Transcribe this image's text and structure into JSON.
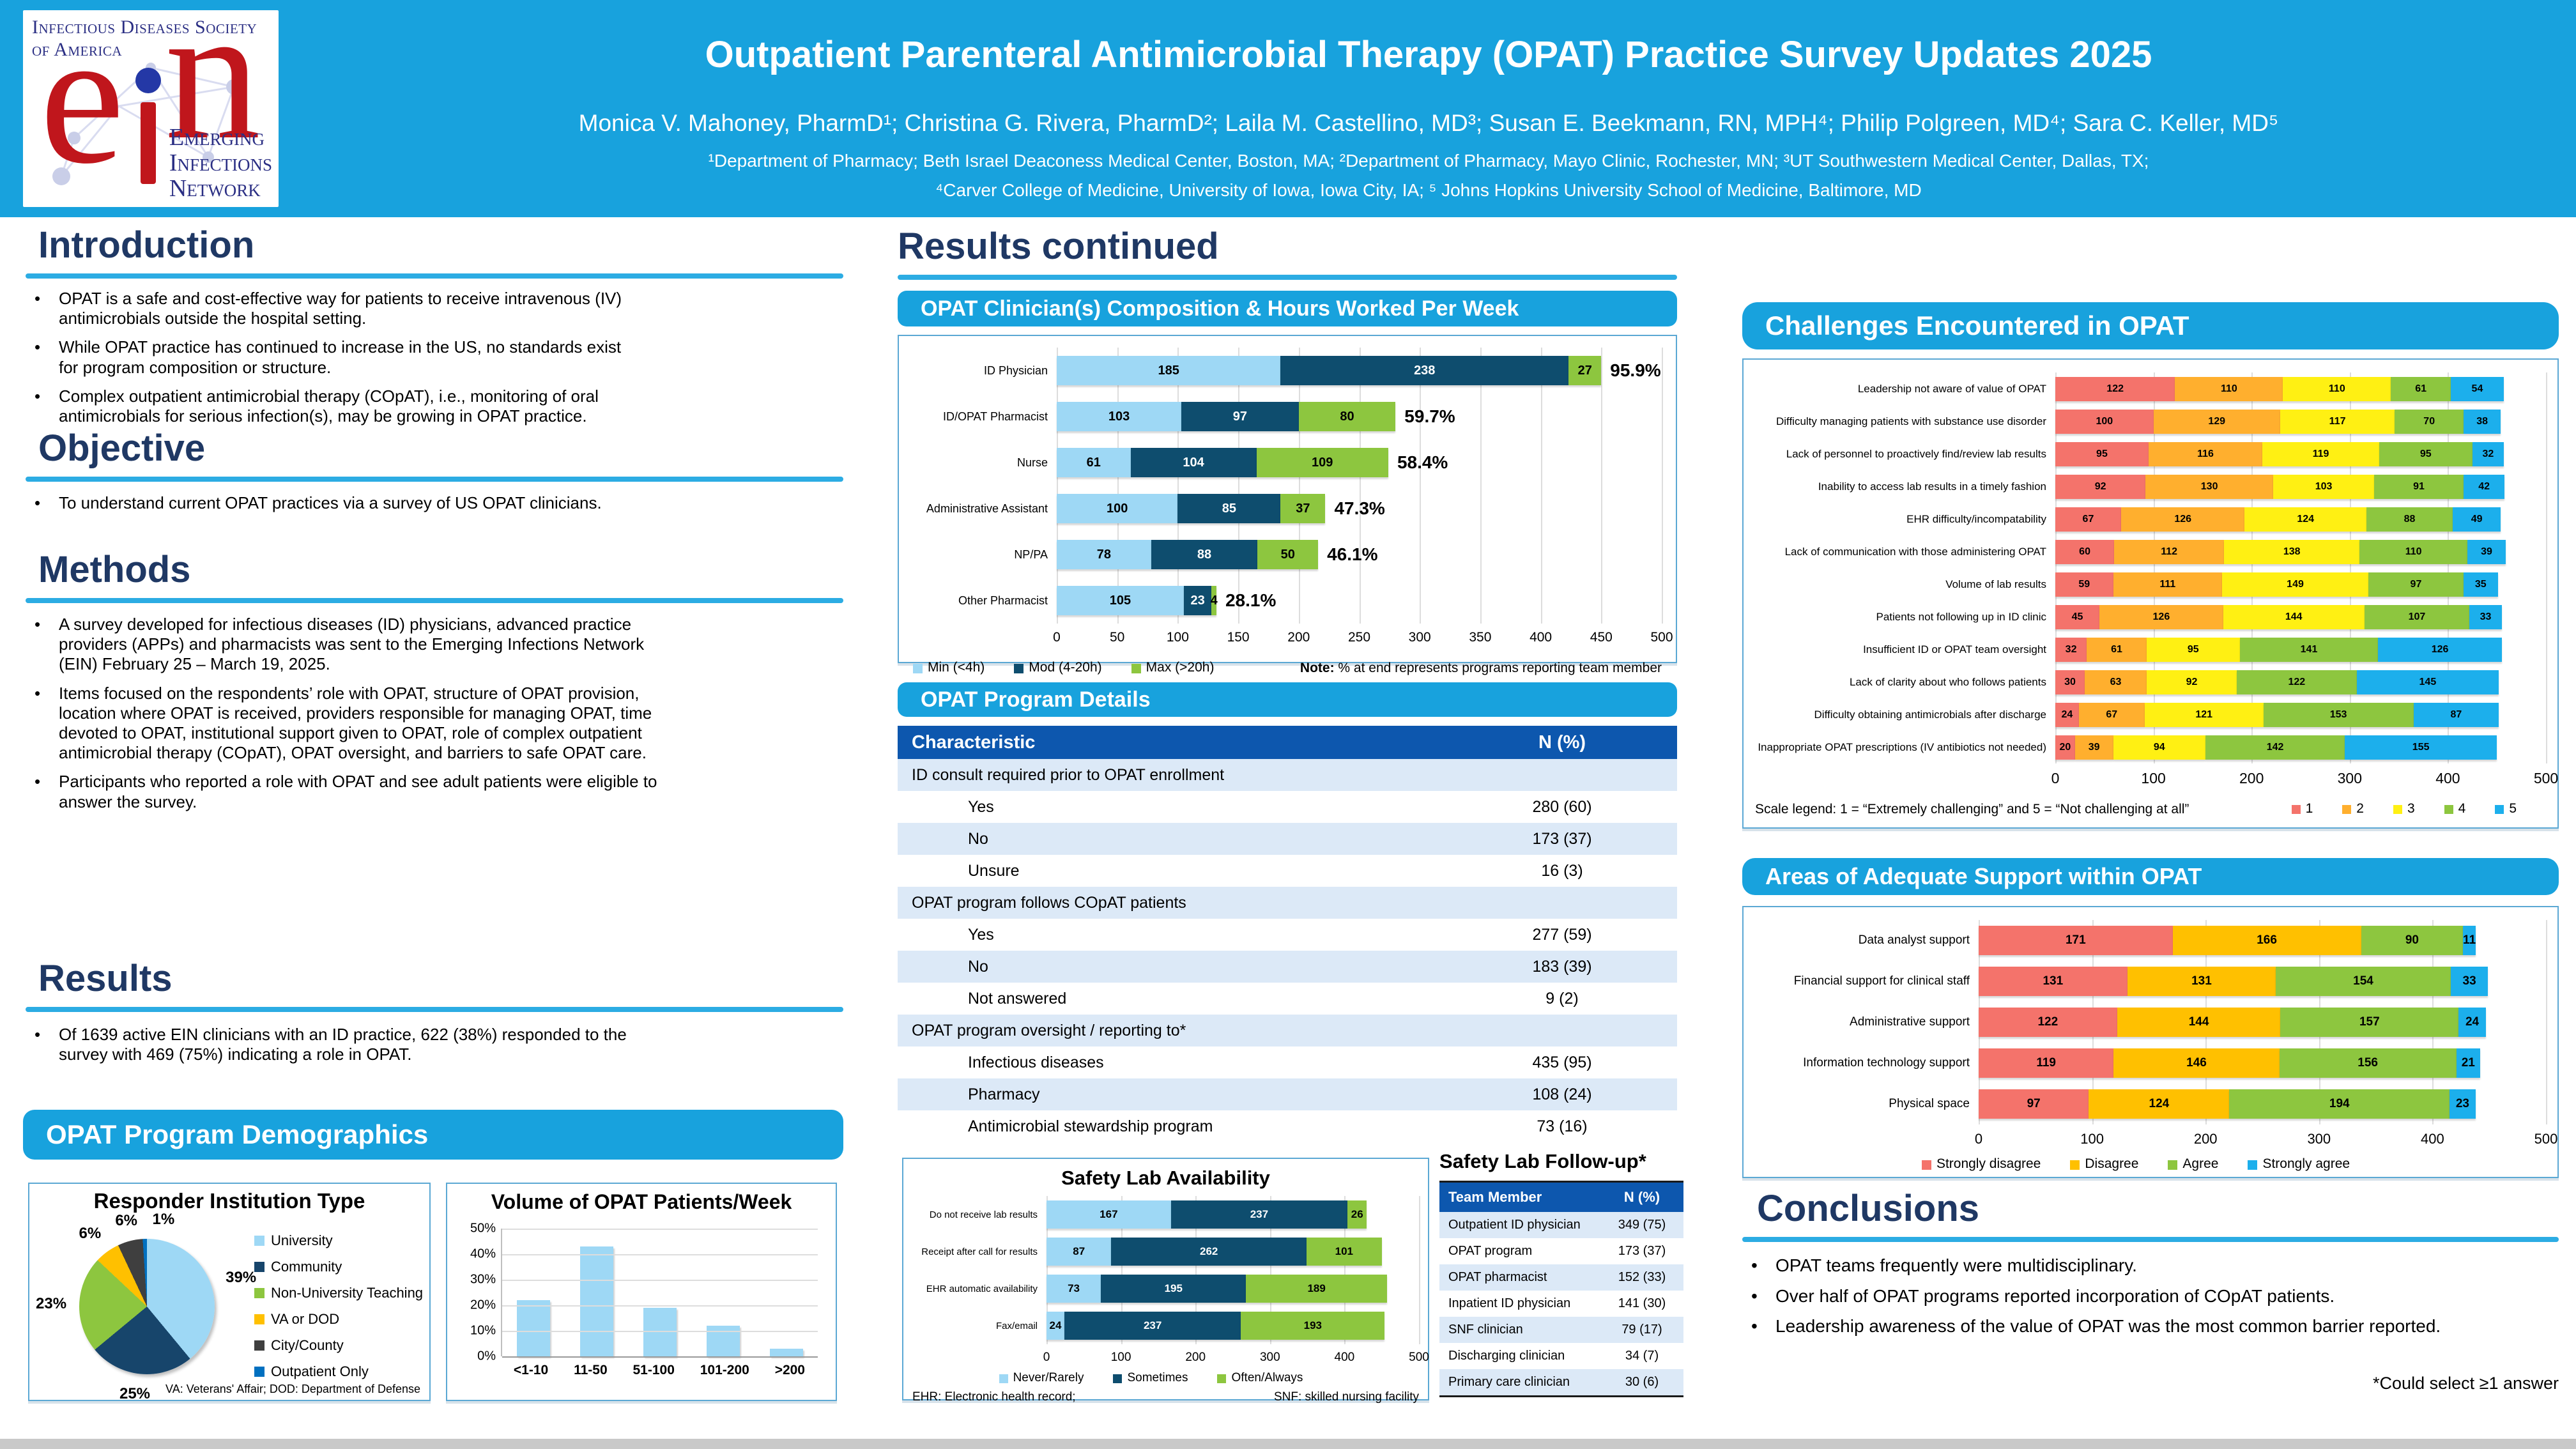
{
  "header": {
    "logo": {
      "society_line1": "Infectious Diseases Society",
      "society_line2": "of America",
      "acronym_e": "e",
      "acronym_n": "n",
      "network_line1": "Emerging",
      "network_line2": "Infections",
      "network_line3": "Network"
    },
    "title": "Outpatient Parenteral Antimicrobial Therapy (OPAT) Practice Survey Updates 2025",
    "authors": "Monica V. Mahoney, PharmD¹; Christina G. Rivera, PharmD²; Laila M. Castellino, MD³; Susan E. Beekmann, RN, MPH⁴; Philip Polgreen, MD⁴; Sara C. Keller, MD⁵",
    "affiliations_line1": "¹Department of Pharmacy; Beth Israel Deaconess Medical Center, Boston, MA; ²Department of Pharmacy, Mayo Clinic, Rochester, MN; ³UT Southwestern Medical Center, Dallas, TX;",
    "affiliations_line2": "⁴Carver College of Medicine, University of Iowa, Iowa City, IA; ⁵ Johns Hopkins University School of Medicine, Baltimore, MD"
  },
  "left": {
    "introduction": {
      "heading": "Introduction",
      "bullets": [
        "OPAT is a safe and cost-effective way for patients to receive intravenous (IV) antimicrobials outside the hospital setting.",
        "While OPAT practice has continued to increase in the US, no standards exist for program composition or structure.",
        "Complex outpatient antimicrobial therapy (COpAT), i.e., monitoring of oral antimicrobials for serious infection(s), may be growing in OPAT practice."
      ]
    },
    "objective": {
      "heading": "Objective",
      "bullets": [
        "To understand current OPAT practices via a survey of US OPAT clinicians."
      ]
    },
    "methods": {
      "heading": "Methods",
      "bullets": [
        "A survey developed for infectious diseases (ID) physicians, advanced practice providers (APPs) and pharmacists was sent to the Emerging Infections Network (EIN) February 25 – March 19, 2025.",
        "Items focused on the respondents’ role with OPAT, structure of OPAT provision, location where OPAT is received, providers responsible for managing OPAT, time devoted to OPAT, institutional support given to OPAT, role of complex outpatient antimicrobial therapy (COpAT), OPAT oversight, and barriers to safe OPAT care.",
        "Participants who reported a role with OPAT and see adult patients were eligible to answer the survey."
      ]
    },
    "results": {
      "heading": "Results",
      "bullets": [
        "Of 1639 active EIN clinicians with an ID practice, 622 (38%) responded to the survey with 469 (75%) indicating a role in OPAT."
      ]
    },
    "demographics_band": "OPAT Program Demographics"
  },
  "middle": {
    "heading": "Results continued",
    "clinician_band": "OPAT Clinician(s) Composition & Hours Worked Per Week",
    "details_band": "OPAT Program Details",
    "program_details": {
      "columns": [
        "Characteristic",
        "N (%)"
      ],
      "rows": [
        {
          "type": "group",
          "label": "ID consult required prior to OPAT enrollment",
          "value": ""
        },
        {
          "type": "item",
          "label": "Yes",
          "value": "280 (60)"
        },
        {
          "type": "item",
          "label": "No",
          "value": "173 (37)"
        },
        {
          "type": "item",
          "label": "Unsure",
          "value": "16 (3)"
        },
        {
          "type": "group",
          "label": "OPAT program follows COpAT patients",
          "value": ""
        },
        {
          "type": "item",
          "label": "Yes",
          "value": "277 (59)"
        },
        {
          "type": "item",
          "label": "No",
          "value": "183 (39)"
        },
        {
          "type": "item",
          "label": "Not answered",
          "value": "9 (2)"
        },
        {
          "type": "group",
          "label": "OPAT program oversight / reporting to*",
          "value": ""
        },
        {
          "type": "item",
          "label": "Infectious diseases",
          "value": "435 (95)"
        },
        {
          "type": "item",
          "label": "Pharmacy",
          "value": "108 (24)"
        },
        {
          "type": "item",
          "label": "Antimicrobial stewardship program",
          "value": "73 (16)"
        }
      ]
    },
    "safety_followup": {
      "title": "Safety Lab Follow-up*",
      "columns": [
        "Team Member",
        "N (%)"
      ],
      "rows": [
        {
          "label": "Outpatient ID physician",
          "value": "349 (75)"
        },
        {
          "label": "OPAT program",
          "value": "173 (37)"
        },
        {
          "label": "OPAT pharmacist",
          "value": "152 (33)"
        },
        {
          "label": "Inpatient ID physician",
          "value": "141 (30)"
        },
        {
          "label": "SNF clinician",
          "value": "79 (17)"
        },
        {
          "label": "Discharging clinician",
          "value": "34 (7)"
        },
        {
          "label": "Primary care clinician",
          "value": "30 (6)"
        }
      ]
    }
  },
  "right": {
    "challenges_band": "Challenges Encountered in OPAT",
    "support_band": "Areas of Adequate Support within OPAT",
    "conclusions": {
      "heading": "Conclusions",
      "bullets": [
        "OPAT teams frequently were multidisciplinary.",
        "Over half of OPAT programs reported incorporation of COpAT patients.",
        "Leadership awareness of the value of OPAT was the most common barrier reported."
      ],
      "footnote": "*Could select ≥1 answer"
    }
  },
  "chart_data": [
    {
      "id": "institution_pie",
      "type": "pie",
      "title": "Responder Institution Type",
      "labels": [
        "University",
        "Community",
        "Non-University Teaching",
        "VA or DOD",
        "City/County",
        "Outpatient Only"
      ],
      "values": [
        39,
        25,
        23,
        6,
        6,
        1
      ],
      "value_labels": [
        "39%",
        "25%",
        "23%",
        "6%",
        "6%",
        "1%"
      ],
      "colors": [
        "#9ED8F5",
        "#17456B",
        "#8DC63F",
        "#FFC000",
        "#3F3F3F",
        "#0070C0"
      ],
      "legend_position": "right",
      "footnote": "VA: Veterans' Affair; DOD: Department of Defense"
    },
    {
      "id": "volume",
      "type": "bar",
      "title": "Volume of OPAT Patients/Week",
      "categories": [
        "<1-10",
        "11-50",
        "51-100",
        "101-200",
        ">200"
      ],
      "values": [
        22,
        43,
        19,
        12,
        3
      ],
      "bar_color": "#9ED8F5",
      "ylabel_ticks": [
        "0%",
        "10%",
        "20%",
        "30%",
        "40%",
        "50%"
      ],
      "ylim": [
        0,
        50
      ],
      "grid": true
    },
    {
      "id": "clinician",
      "type": "bar",
      "orientation": "horizontal_stacked",
      "title": "OPAT Clinician(s) Composition & Hours Worked Per Week",
      "categories": [
        "ID Physician",
        "ID/OPAT Pharmacist",
        "Nurse",
        "Administrative Assistant",
        "NP/PA",
        "Other Pharmacist"
      ],
      "series": [
        {
          "name": "Min (<4h)",
          "color": "#9ED8F5",
          "text_color": "#000000",
          "values": [
            185,
            103,
            61,
            100,
            78,
            105
          ]
        },
        {
          "name": "Mod (4-20h)",
          "color": "#0E4D6E",
          "text_color": "#ffffff",
          "values": [
            238,
            97,
            104,
            85,
            88,
            23
          ]
        },
        {
          "name": "Max (>20h)",
          "color": "#8DC63F",
          "text_color": "#000000",
          "values": [
            27,
            80,
            109,
            37,
            50,
            4
          ]
        }
      ],
      "end_labels": [
        "95.9%",
        "59.7%",
        "58.4%",
        "47.3%",
        "46.1%",
        "28.1%"
      ],
      "xlim": [
        0,
        500
      ],
      "xtick_step": 50,
      "note_label": "Note:",
      "note_text": " % at end represents programs reporting team member",
      "legend_position": "bottom-left"
    },
    {
      "id": "availability",
      "type": "bar",
      "orientation": "horizontal_stacked",
      "title": "Safety Lab Availability",
      "categories": [
        "Do not receive lab results",
        "Receipt after call for results",
        "EHR automatic availability",
        "Fax/email"
      ],
      "series": [
        {
          "name": "Never/Rarely",
          "color": "#9ED8F5",
          "text_color": "#000000",
          "values": [
            167,
            87,
            73,
            24
          ]
        },
        {
          "name": "Sometimes",
          "color": "#0E4D6E",
          "text_color": "#ffffff",
          "values": [
            237,
            262,
            195,
            237
          ]
        },
        {
          "name": "Often/Always",
          "color": "#8DC63F",
          "text_color": "#000000",
          "values": [
            26,
            101,
            189,
            193
          ]
        }
      ],
      "xlim": [
        0,
        500
      ],
      "xtick_step": 100,
      "legend_position": "bottom-center",
      "footnote_left": "EHR: Electronic health record;",
      "footnote_right": "SNF: skilled nursing facility"
    },
    {
      "id": "challenges",
      "type": "bar",
      "orientation": "horizontal_stacked",
      "title": "Challenges Encountered in OPAT",
      "categories": [
        "Leadership not aware of value of OPAT",
        "Difficulty managing patients with substance use disorder",
        "Lack of personnel to proactively find/review lab results",
        "Inability to access lab results in a timely fashion",
        "EHR difficulty/incompatability",
        "Lack of communication with those administering OPAT",
        "Volume of lab results",
        "Patients not following up in ID clinic",
        "Insufficient ID or OPAT team oversight",
        "Lack of clarity about who follows patients",
        "Difficulty obtaining antimicrobials after discharge",
        "Inappropriate OPAT prescriptions (IV antibiotics not needed)"
      ],
      "series": [
        {
          "name": "1",
          "color": "#F4736B",
          "text_color": "#000000",
          "values": [
            122,
            100,
            95,
            92,
            67,
            60,
            59,
            45,
            32,
            30,
            24,
            20
          ]
        },
        {
          "name": "2",
          "color": "#FFAF2E",
          "text_color": "#000000",
          "values": [
            110,
            129,
            116,
            130,
            126,
            112,
            111,
            126,
            61,
            63,
            67,
            39
          ]
        },
        {
          "name": "3",
          "color": "#FFF013",
          "text_color": "#000000",
          "values": [
            110,
            117,
            119,
            103,
            124,
            138,
            149,
            144,
            95,
            92,
            121,
            94
          ]
        },
        {
          "name": "4",
          "color": "#8DC63F",
          "text_color": "#000000",
          "values": [
            61,
            70,
            95,
            91,
            88,
            110,
            97,
            107,
            141,
            122,
            153,
            142
          ]
        },
        {
          "name": "5",
          "color": "#1CAFEC",
          "text_color": "#000000",
          "values": [
            54,
            38,
            32,
            42,
            49,
            39,
            35,
            33,
            126,
            145,
            87,
            155
          ]
        }
      ],
      "xlim": [
        0,
        500
      ],
      "xtick_step": 100,
      "scale_note": "Scale legend: 1 = “Extremely challenging” and 5 = “Not challenging at all”",
      "legend_position": "bottom-right"
    },
    {
      "id": "support",
      "type": "bar",
      "orientation": "horizontal_stacked",
      "title": "Areas of Adequate Support within OPAT",
      "categories": [
        "Data analyst support",
        "Financial support for clinical staff",
        "Administrative support",
        "Information technology support",
        "Physical space"
      ],
      "series": [
        {
          "name": "Strongly disagree",
          "color": "#F4736B",
          "text_color": "#000000",
          "values": [
            171,
            131,
            122,
            119,
            97
          ]
        },
        {
          "name": "Disagree",
          "color": "#FFC000",
          "text_color": "#000000",
          "values": [
            166,
            131,
            144,
            146,
            124
          ]
        },
        {
          "name": "Agree",
          "color": "#8DC63F",
          "text_color": "#000000",
          "values": [
            90,
            154,
            157,
            156,
            194
          ]
        },
        {
          "name": "Strongly agree",
          "color": "#1CAFEC",
          "text_color": "#000000",
          "values": [
            11,
            33,
            24,
            21,
            23
          ]
        }
      ],
      "xlim": [
        0,
        500
      ],
      "xtick_step": 100,
      "legend_position": "bottom-center"
    }
  ]
}
